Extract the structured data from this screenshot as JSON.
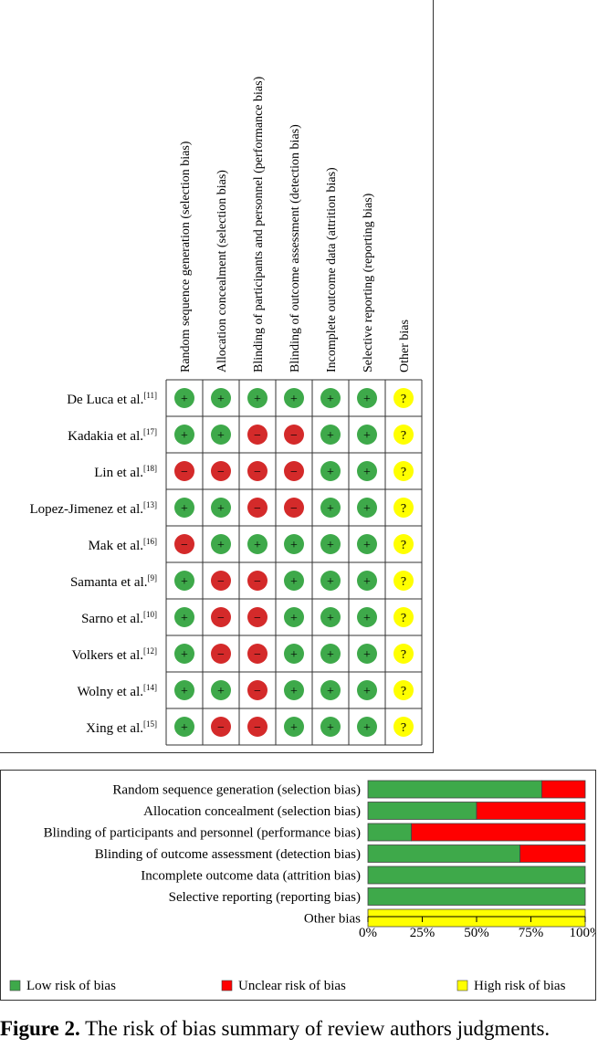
{
  "summary": {
    "columns": [
      "Random sequence generation (selection bias)",
      "Allocation concealment (selection bias)",
      "Blinding of participants and personnel (performance bias)",
      "Blinding of outcome assessment (detection bias)",
      "Incomplete outcome data (attrition bias)",
      "Selective reporting (reporting bias)",
      "Other bias"
    ],
    "studies": [
      {
        "name": "De Luca et al.",
        "ref": "[11]",
        "judgments": [
          "+",
          "+",
          "+",
          "+",
          "+",
          "+",
          "?"
        ]
      },
      {
        "name": "Kadakia et al.",
        "ref": "[17]",
        "judgments": [
          "+",
          "+",
          "-",
          "-",
          "+",
          "+",
          "?"
        ]
      },
      {
        "name": "Lin et al.",
        "ref": "[18]",
        "judgments": [
          "-",
          "-",
          "-",
          "-",
          "+",
          "+",
          "?"
        ]
      },
      {
        "name": "Lopez-Jimenez et al.",
        "ref": "[13]",
        "judgments": [
          "+",
          "+",
          "-",
          "-",
          "+",
          "+",
          "?"
        ]
      },
      {
        "name": "Mak et al.",
        "ref": "[16]",
        "judgments": [
          "-",
          "+",
          "+",
          "+",
          "+",
          "+",
          "?"
        ]
      },
      {
        "name": "Samanta et al.",
        "ref": "[9]",
        "judgments": [
          "+",
          "-",
          "-",
          "+",
          "+",
          "+",
          "?"
        ]
      },
      {
        "name": "Sarno et al.",
        "ref": "[10]",
        "judgments": [
          "+",
          "-",
          "-",
          "+",
          "+",
          "+",
          "?"
        ]
      },
      {
        "name": "Volkers et al.",
        "ref": "[12]",
        "judgments": [
          "+",
          "-",
          "-",
          "+",
          "+",
          "+",
          "?"
        ]
      },
      {
        "name": "Wolny et al.",
        "ref": "[14]",
        "judgments": [
          "+",
          "+",
          "-",
          "+",
          "+",
          "+",
          "?"
        ]
      },
      {
        "name": "Xing et al.",
        "ref": "[15]",
        "judgments": [
          "+",
          "-",
          "-",
          "+",
          "+",
          "+",
          "?"
        ]
      }
    ],
    "symbols": {
      "low": "+",
      "unclear": "−",
      "high": "?"
    }
  },
  "chart_data": {
    "type": "bar",
    "orientation": "horizontal",
    "stacked": true,
    "categories": [
      "Random sequence generation (selection bias)",
      "Allocation concealment (selection bias)",
      "Blinding of participants and personnel (performance bias)",
      "Blinding of outcome assessment (detection bias)",
      "Incomplete outcome data (attrition bias)",
      "Selective reporting (reporting bias)",
      "Other bias"
    ],
    "series": [
      {
        "name": "Low risk of bias",
        "color": "#3ea94a",
        "values": [
          80,
          50,
          20,
          70,
          100,
          100,
          0
        ]
      },
      {
        "name": "Unclear risk of bias",
        "color": "#ff0000",
        "values": [
          20,
          50,
          80,
          30,
          0,
          0,
          0
        ]
      },
      {
        "name": "High risk of bias",
        "color": "#ffff00",
        "values": [
          0,
          0,
          0,
          0,
          0,
          0,
          100
        ]
      }
    ],
    "xlim": [
      0,
      100
    ],
    "xticks": [
      "0%",
      "25%",
      "50%",
      "75%",
      "100%"
    ],
    "legend": [
      "Low risk of bias",
      "Unclear risk of bias",
      "High risk of bias"
    ]
  },
  "colors": {
    "green": "#3ea94a",
    "red": "#d42a2a",
    "bar_red": "#ff0000",
    "yellow": "#ffff00",
    "border": "#333333"
  },
  "caption": {
    "label": "Figure 2.",
    "text": " The risk of bias summary of review authors judgments."
  }
}
